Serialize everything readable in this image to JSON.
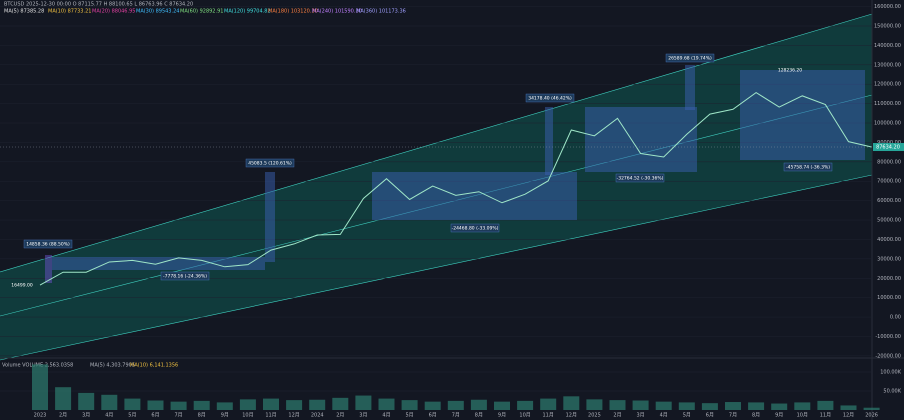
{
  "chart_data": {
    "type": "line",
    "header": [
      "BTCUSD 2025-12-30 00:00 O 87115.77 H 88100.65 L 86763.96 C 87634.20",
      "MA(5) 87385.28",
      "MA(10) 87733.21",
      "MA(20) 88046.95",
      "MA(30) 89543.24",
      "MA(60) 92892.91",
      "MA(120) 99704.82",
      "MA(180) 103120.30",
      "MA(240) 101590.30",
      "MA(360) 101173.36"
    ],
    "categories": [
      "2023",
      "2月",
      "3月",
      "4月",
      "5月",
      "6月",
      "7月",
      "8月",
      "9月",
      "10月",
      "11月",
      "12月",
      "2024",
      "2月",
      "3月",
      "4月",
      "5月",
      "6月",
      "7月",
      "8月",
      "9月",
      "10月",
      "11月",
      "12月",
      "2025",
      "2月",
      "3月",
      "4月",
      "5月",
      "6月",
      "7月",
      "8月",
      "9月",
      "10月",
      "11月",
      "12月",
      "2026"
    ],
    "series": [
      {
        "name": "BTCUSD",
        "color": "#9fe6c8",
        "values": [
          16500,
          23100,
          23100,
          28400,
          29200,
          27200,
          30500,
          29200,
          25900,
          27000,
          34500,
          37700,
          42300,
          42600,
          61100,
          71300,
          60600,
          67500,
          62700,
          64600,
          58900,
          63300,
          70200,
          96400,
          93400,
          102400,
          84300,
          82500,
          94200,
          104600,
          107100,
          115700,
          108200,
          114000,
          109500,
          90400,
          87634.2
        ]
      }
    ],
    "last_price": {
      "value": 87634.2,
      "label": "87634.20"
    },
    "ylim": [
      -21100,
      163400
    ],
    "yticks": [
      {
        "value": 160000,
        "label": "160000.00"
      },
      {
        "value": 150000,
        "label": "150000.00"
      },
      {
        "value": 140000,
        "label": "140000.00"
      },
      {
        "value": 130000,
        "label": "130000.00"
      },
      {
        "value": 120000,
        "label": "120000.00"
      },
      {
        "value": 110000,
        "label": "110000.00"
      },
      {
        "value": 100000,
        "label": "100000.00"
      },
      {
        "value": 90000,
        "label": "90000.00"
      },
      {
        "value": 80000,
        "label": "80000.00"
      },
      {
        "value": 70000,
        "label": "70000.00"
      },
      {
        "value": 60000,
        "label": "60000.00"
      },
      {
        "value": 50000,
        "label": "50000.00"
      },
      {
        "value": 40000,
        "label": "40000.00"
      },
      {
        "value": 30000,
        "label": "30000.00"
      },
      {
        "value": 20000,
        "label": "20000.00"
      },
      {
        "value": 10000,
        "label": "10000.00"
      },
      {
        "value": 0,
        "label": "0.00"
      },
      {
        "value": -10000,
        "label": "-10000.00"
      },
      {
        "value": -20000,
        "label": "-20000.00"
      }
    ],
    "annotations": [
      "16499.00",
      "14858.36 (88.50%)",
      "-7778.16 (-24.36%)",
      "45083.5 (120.61%)",
      "-24468.80 (-33.09%)",
      "34178.40 (46.42%)",
      "-32764.52 (-30.36%)",
      "26589.68 (19.74%)",
      "128236.20",
      "-45758.74 (-36.3%)"
    ],
    "volume": {
      "title": "Volume VOLUME 2,563.0358",
      "ma": [
        "MA(5) 4,303.7905",
        "MA(10) 6,141.1356"
      ],
      "color": "#2e7d6f",
      "values": [
        120000,
        60000,
        45000,
        40000,
        30000,
        25000,
        22000,
        24000,
        20000,
        28000,
        30000,
        26000,
        27000,
        32000,
        38000,
        30000,
        26000,
        22000,
        24000,
        27000,
        22000,
        24000,
        30000,
        36000,
        28000,
        26000,
        25000,
        22000,
        20000,
        18000,
        21000,
        20000,
        17000,
        20000,
        24000,
        12000,
        6000
      ],
      "ylim": [
        0,
        131600
      ],
      "yticks": [
        {
          "value": 100000,
          "label": "100.00K"
        },
        {
          "value": 50000,
          "label": "50.00K"
        }
      ]
    }
  }
}
